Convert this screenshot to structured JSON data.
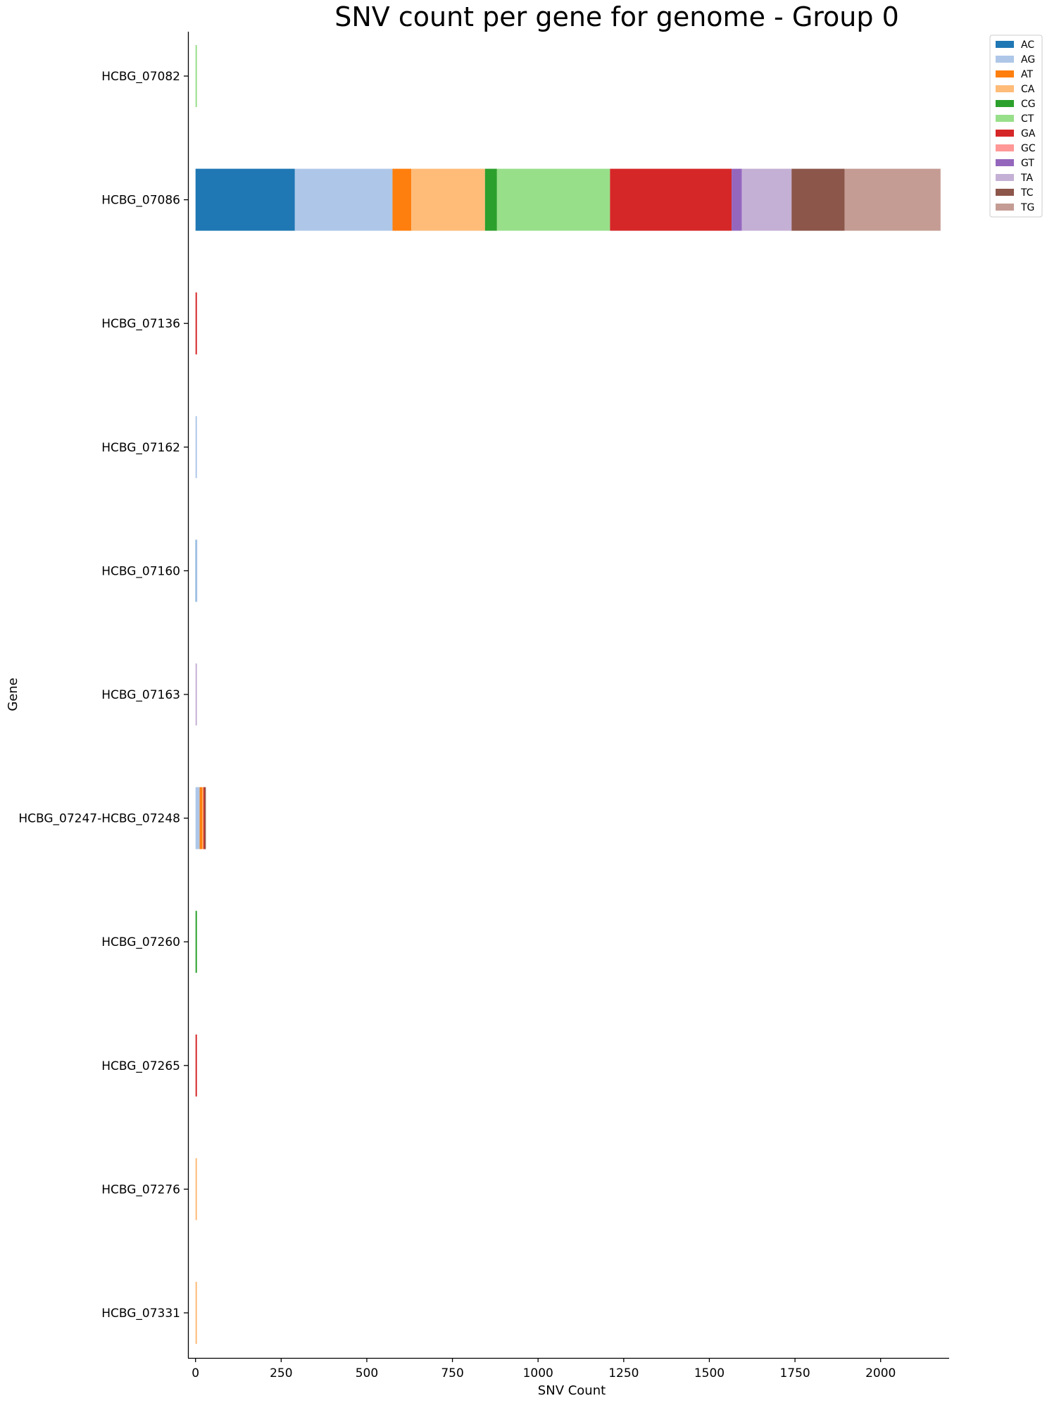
{
  "chart_data": {
    "type": "bar",
    "orientation": "horizontal",
    "stacked": true,
    "title": "SNV count per gene for genome - Group 0",
    "xlabel": "SNV Count",
    "ylabel": "Gene",
    "xlim": [
      -22,
      2200
    ],
    "xticks": [
      0,
      250,
      500,
      750,
      1000,
      1250,
      1500,
      1750,
      2000
    ],
    "grid": false,
    "legend_position": "top-right, outside",
    "categories": [
      "HCBG_07082",
      "HCBG_07086",
      "HCBG_07136",
      "HCBG_07162",
      "HCBG_07160",
      "HCBG_07163",
      "HCBG_07247-HCBG_07248",
      "HCBG_07260",
      "HCBG_07265",
      "HCBG_07276",
      "HCBG_07331"
    ],
    "series": [
      {
        "name": "AC",
        "color": "#1f77b4",
        "values": [
          0,
          290,
          0,
          0,
          1,
          0,
          0,
          0,
          0,
          0,
          0
        ]
      },
      {
        "name": "AG",
        "color": "#aec7e8",
        "values": [
          0,
          285,
          0,
          1,
          1,
          0,
          12,
          0,
          0,
          0,
          0
        ]
      },
      {
        "name": "AT",
        "color": "#ff7f0e",
        "values": [
          0,
          55,
          0,
          0,
          0,
          0,
          8,
          0,
          0,
          0,
          0
        ]
      },
      {
        "name": "CA",
        "color": "#ffbb78",
        "values": [
          0,
          215,
          0,
          0,
          0,
          0,
          3,
          0,
          0,
          1,
          1
        ]
      },
      {
        "name": "CG",
        "color": "#2ca02c",
        "values": [
          0,
          35,
          0,
          0,
          0,
          0,
          0,
          1,
          0,
          0,
          0
        ]
      },
      {
        "name": "CT",
        "color": "#98df8a",
        "values": [
          1,
          330,
          0,
          0,
          0,
          0,
          0,
          0,
          0,
          0,
          0
        ]
      },
      {
        "name": "GA",
        "color": "#d62728",
        "values": [
          0,
          355,
          1,
          0,
          0,
          0,
          3,
          0,
          1,
          0,
          0
        ]
      },
      {
        "name": "GC",
        "color": "#ff9896",
        "values": [
          0,
          0,
          0,
          0,
          0,
          0,
          0,
          0,
          0,
          0,
          0
        ]
      },
      {
        "name": "GT",
        "color": "#9467bd",
        "values": [
          0,
          30,
          0,
          0,
          0,
          0,
          0,
          0,
          0,
          0,
          0
        ]
      },
      {
        "name": "TA",
        "color": "#c5b0d5",
        "values": [
          0,
          145,
          0,
          0,
          0,
          1,
          0,
          0,
          0,
          0,
          0
        ]
      },
      {
        "name": "TC",
        "color": "#8c564b",
        "values": [
          0,
          155,
          0,
          0,
          0,
          0,
          2,
          0,
          0,
          0,
          0
        ]
      },
      {
        "name": "TG",
        "color": "#c49c94",
        "values": [
          0,
          280,
          0,
          0,
          0,
          0,
          0,
          0,
          0,
          0,
          0
        ]
      }
    ]
  }
}
